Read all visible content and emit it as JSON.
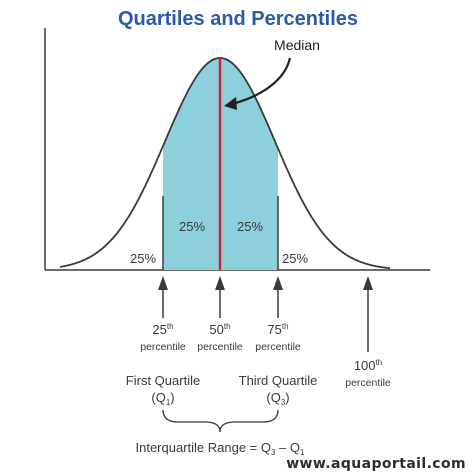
{
  "title": "Quartiles and Percentiles",
  "median_label": "Median",
  "region_labels": [
    "25%",
    "25%",
    "25%",
    "25%"
  ],
  "markers": [
    {
      "num": "25",
      "sup": "th",
      "word": "percentile"
    },
    {
      "num": "50",
      "sup": "th",
      "word": "percentile"
    },
    {
      "num": "75",
      "sup": "th",
      "word": "percentile"
    },
    {
      "num": "100",
      "sup": "th",
      "word": "percentile"
    }
  ],
  "quartiles": {
    "first": {
      "name": "First Quartile",
      "sym": "Q",
      "sub": "1"
    },
    "third": {
      "name": "Third Quartile",
      "sym": "Q",
      "sub": "3"
    }
  },
  "iqr": {
    "prefix": "Interquartile Range = Q",
    "sub3": "3",
    "mid": " – Q",
    "sub1": "1"
  },
  "watermark": "www.aquaportail.com",
  "colors": {
    "fill": "#8dcfdb",
    "line": "#3a3a3a",
    "median": "#d1202f",
    "title": "#2d5aa8"
  }
}
